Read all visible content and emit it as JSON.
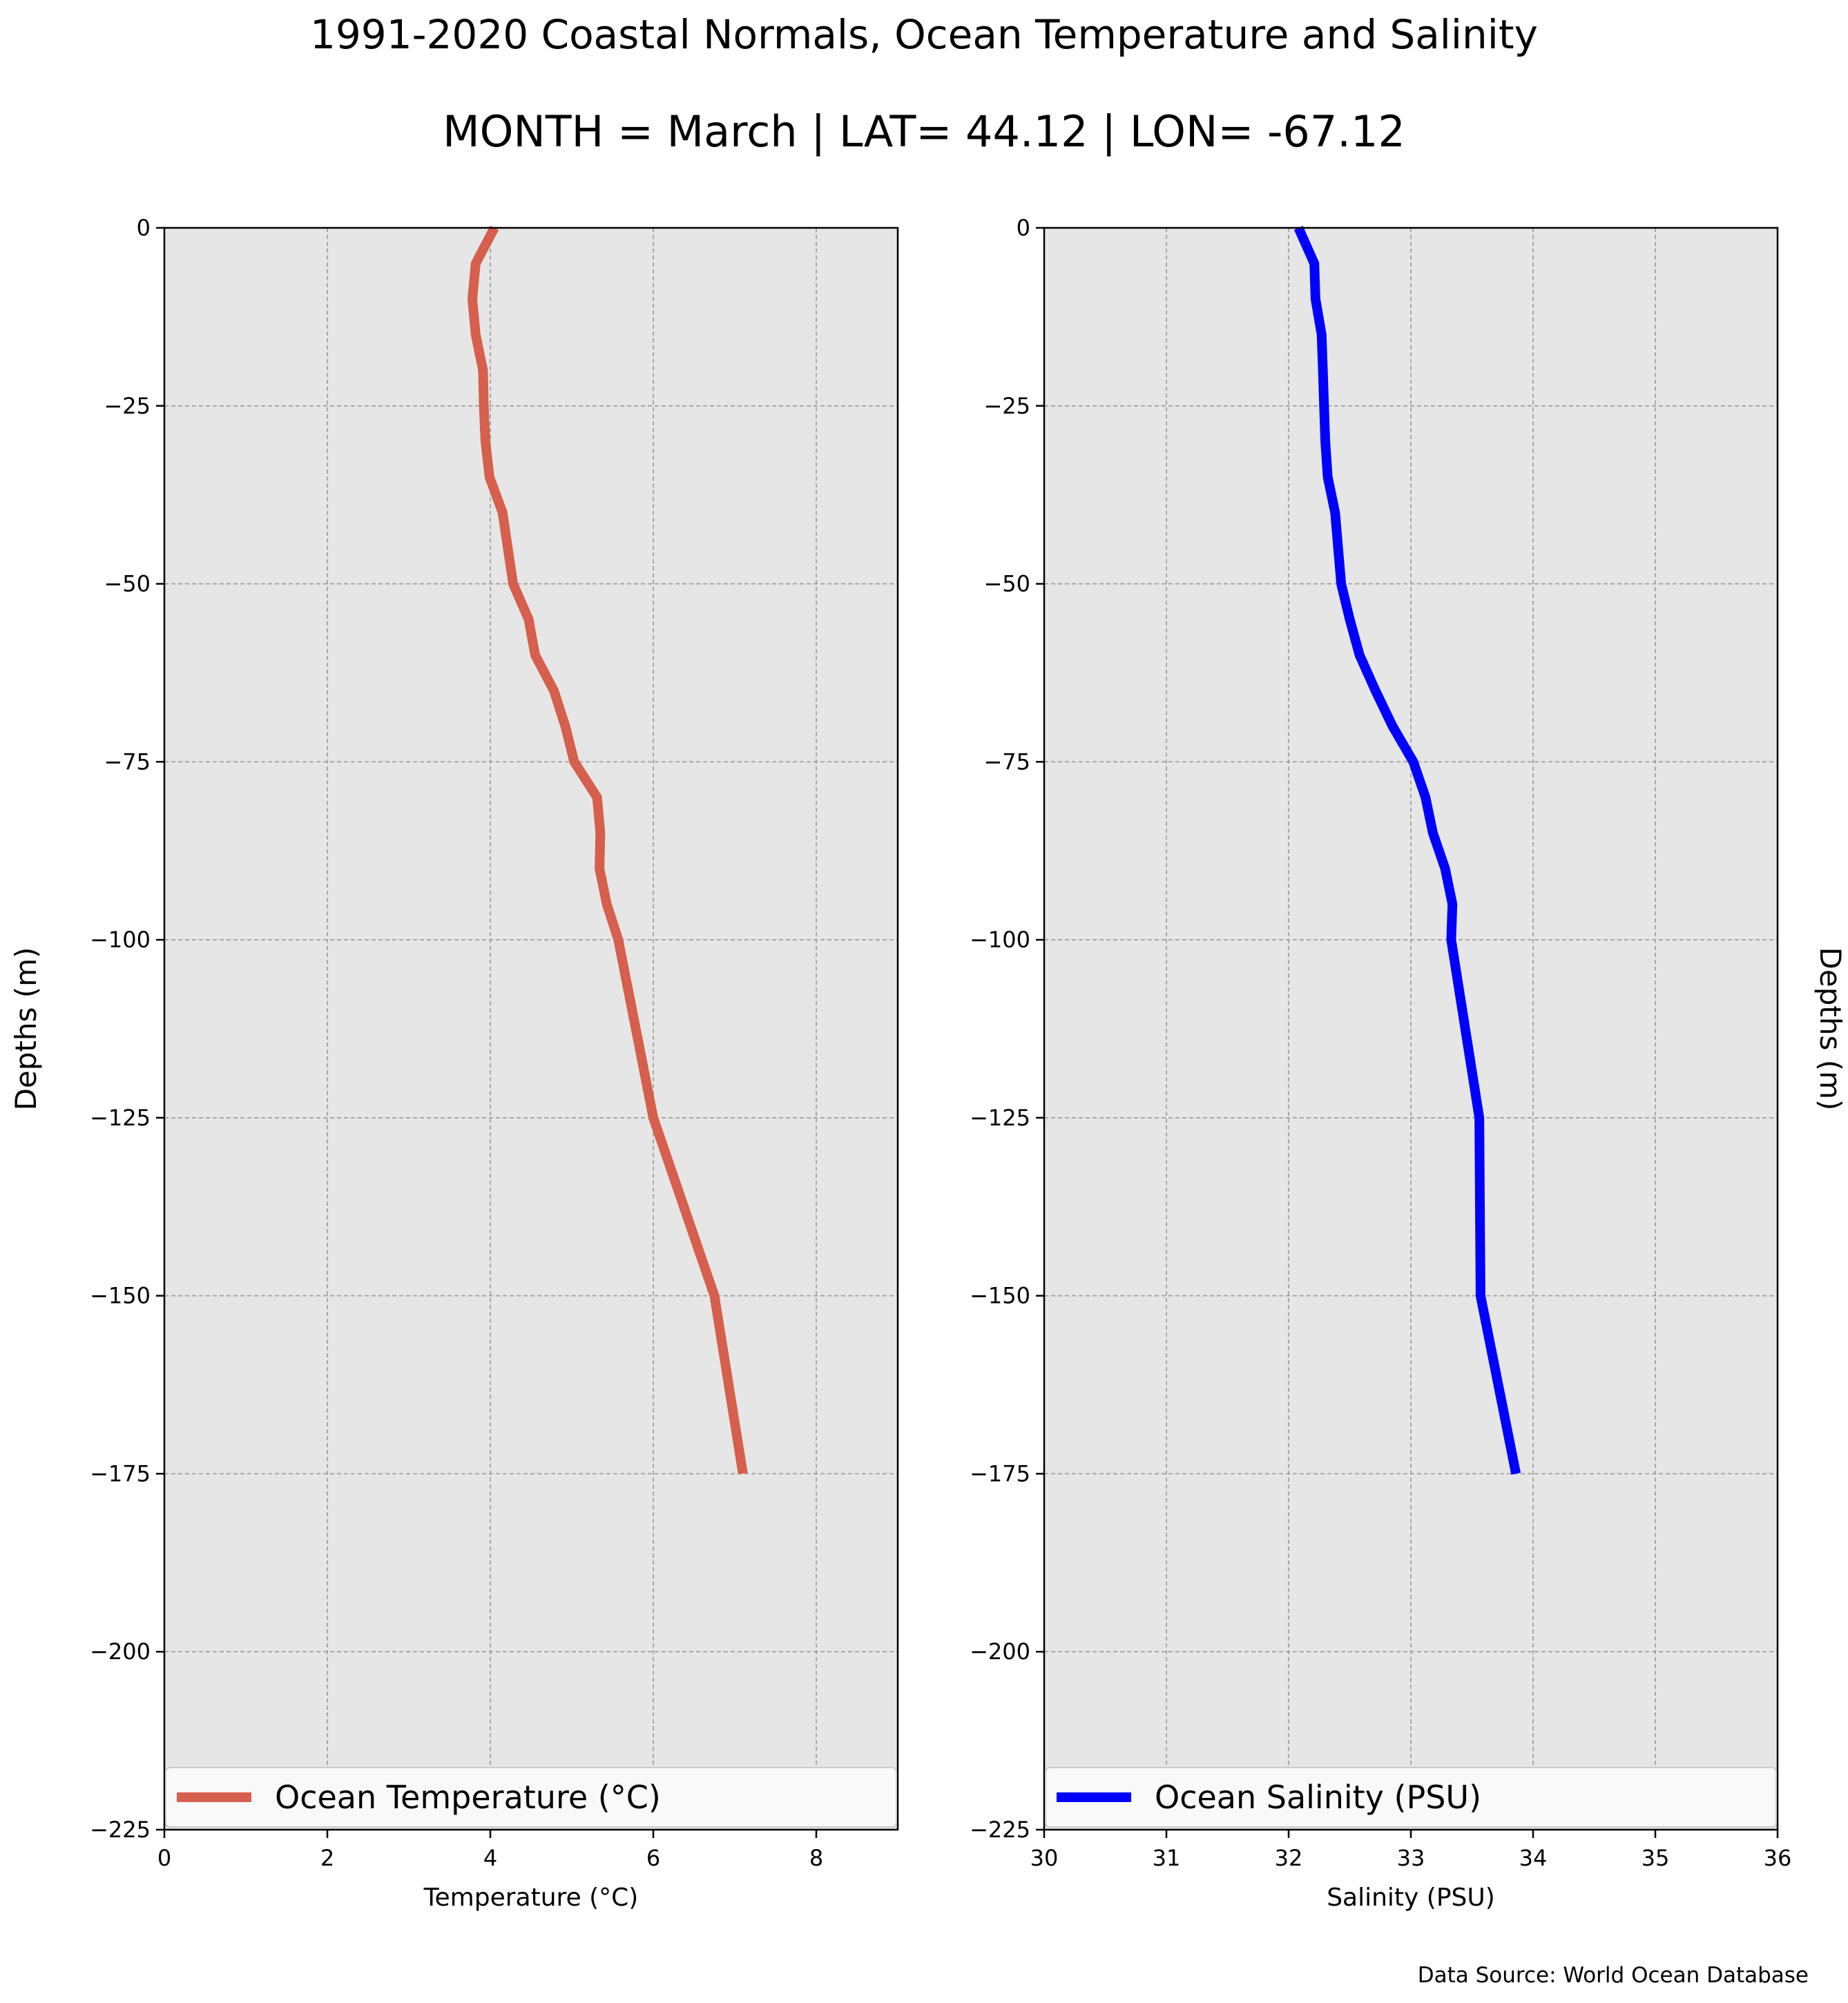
{
  "figure": {
    "title": "1991-2020 Coastal Normals, Ocean Temperature and Salinity",
    "subtitle": "MONTH = March | LAT= 44.12 | LON= -67.12",
    "source": "Data Source: World Ocean Database"
  },
  "colors": {
    "background": "#ffffff",
    "plot_background": "#e6e6e6",
    "grid": "#999999",
    "temperature_line": "#d65f4d",
    "salinity_line": "#0000ff"
  },
  "chart_data": [
    {
      "type": "line",
      "xlabel": "Temperature ($^\\circ$C)",
      "xlabel_display": "Temperature (°C)",
      "ylabel": "Depths (m)",
      "xlim": [
        0,
        9
      ],
      "ylim": [
        -225,
        0
      ],
      "x_ticks": [
        0,
        2,
        4,
        6,
        8
      ],
      "x_tick_labels": [
        "0",
        "2",
        "4",
        "6",
        "8"
      ],
      "y_ticks": [
        0,
        -25,
        -50,
        -75,
        -100,
        -125,
        -150,
        -175,
        -200,
        -225
      ],
      "y_tick_labels": [
        "0",
        "−25",
        "−50",
        "−75",
        "−100",
        "−125",
        "−150",
        "−175",
        "−200",
        "−225"
      ],
      "grid": true,
      "legend_position": "bottom",
      "series": [
        {
          "name": "Ocean Temperature (°C)",
          "color": "#d65f4d",
          "x": [
            4.05,
            3.82,
            3.78,
            3.82,
            3.91,
            3.92,
            3.94,
            3.99,
            4.15,
            4.28,
            4.47,
            4.55,
            4.78,
            4.92,
            5.03,
            5.31,
            5.35,
            5.34,
            5.43,
            5.57,
            6.0,
            6.75,
            7.1
          ],
          "y": [
            0,
            -5,
            -10,
            -15,
            -20,
            -25,
            -30,
            -35,
            -40,
            -50,
            -55,
            -60,
            -65,
            -70,
            -75,
            -80,
            -85,
            -90,
            -95,
            -100,
            -125,
            -150,
            -175
          ]
        }
      ]
    },
    {
      "type": "line",
      "xlabel": "Salinity (PSU)",
      "ylabel": "Depths (m)",
      "xlim": [
        30,
        36
      ],
      "ylim": [
        -225,
        0
      ],
      "x_ticks": [
        30,
        31,
        32,
        33,
        34,
        35,
        36
      ],
      "x_tick_labels": [
        "30",
        "31",
        "32",
        "33",
        "34",
        "35",
        "36"
      ],
      "y_ticks": [
        0,
        -25,
        -50,
        -75,
        -100,
        -125,
        -150,
        -175,
        -200,
        -225
      ],
      "y_tick_labels": [
        "0",
        "−25",
        "−50",
        "−75",
        "−100",
        "−125",
        "−150",
        "−175",
        "−200",
        "−225"
      ],
      "grid": true,
      "legend_position": "bottom",
      "series": [
        {
          "name": "Ocean Salinity (PSU)",
          "color": "#0000ff",
          "x": [
            32.08,
            32.21,
            32.22,
            32.27,
            32.28,
            32.29,
            32.3,
            32.32,
            32.38,
            32.43,
            32.5,
            32.58,
            32.71,
            32.85,
            33.02,
            33.12,
            33.18,
            33.28,
            33.34,
            33.33,
            33.56,
            33.57,
            33.86
          ],
          "y": [
            0,
            -5,
            -10,
            -15,
            -20,
            -25,
            -30,
            -35,
            -40,
            -50,
            -55,
            -60,
            -65,
            -70,
            -75,
            -80,
            -85,
            -90,
            -95,
            -100,
            -125,
            -150,
            -175
          ]
        }
      ]
    }
  ]
}
